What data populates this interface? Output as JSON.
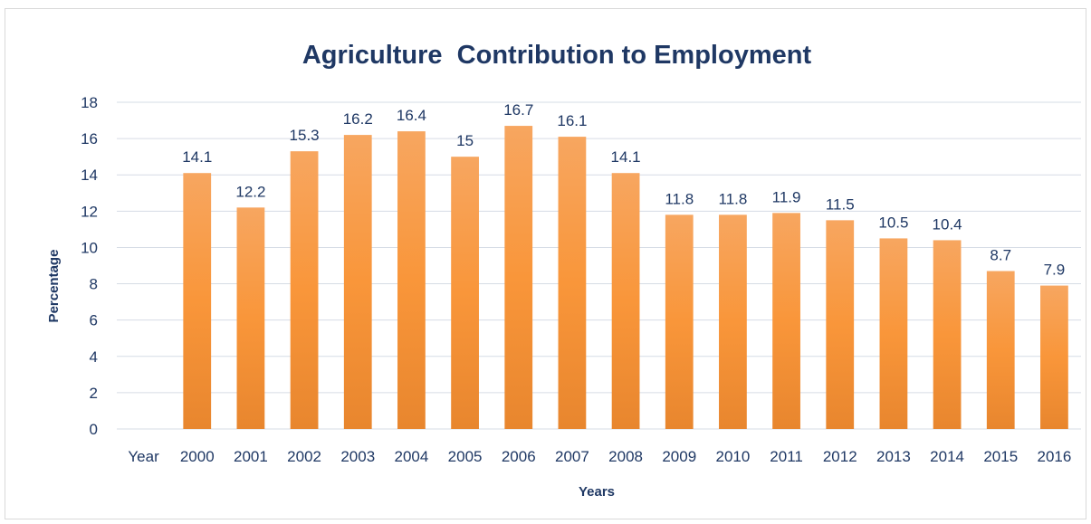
{
  "chart_data": {
    "type": "bar",
    "title": "Agriculture  Contribution to Employment",
    "xlabel": "Years",
    "ylabel": "Percentage",
    "ylim": [
      0,
      18
    ],
    "ytick_step": 2,
    "grid": true,
    "legend": "none",
    "categories": [
      "Year",
      "2000",
      "2001",
      "2002",
      "2003",
      "2004",
      "2005",
      "2006",
      "2007",
      "2008",
      "2009",
      "2010",
      "2011",
      "2012",
      "2013",
      "2014",
      "2015",
      "2016"
    ],
    "values": [
      null,
      14.1,
      12.2,
      15.3,
      16.2,
      16.4,
      15,
      16.7,
      16.1,
      14.1,
      11.8,
      11.8,
      11.9,
      11.5,
      10.5,
      10.4,
      8.7,
      7.9
    ],
    "data_labels": [
      "",
      "14.1",
      "12.2",
      "15.3",
      "16.2",
      "16.4",
      "15",
      "16.7",
      "16.1",
      "14.1",
      "11.8",
      "11.8",
      "11.9",
      "11.5",
      "10.5",
      "10.4",
      "8.7",
      "7.9"
    ],
    "colors": {
      "bar_top": "#f7a660",
      "bar_mid": "#f9963a",
      "bar_bottom": "#e8862e",
      "text": "#1f3864",
      "grid": "#d6dce5"
    }
  }
}
